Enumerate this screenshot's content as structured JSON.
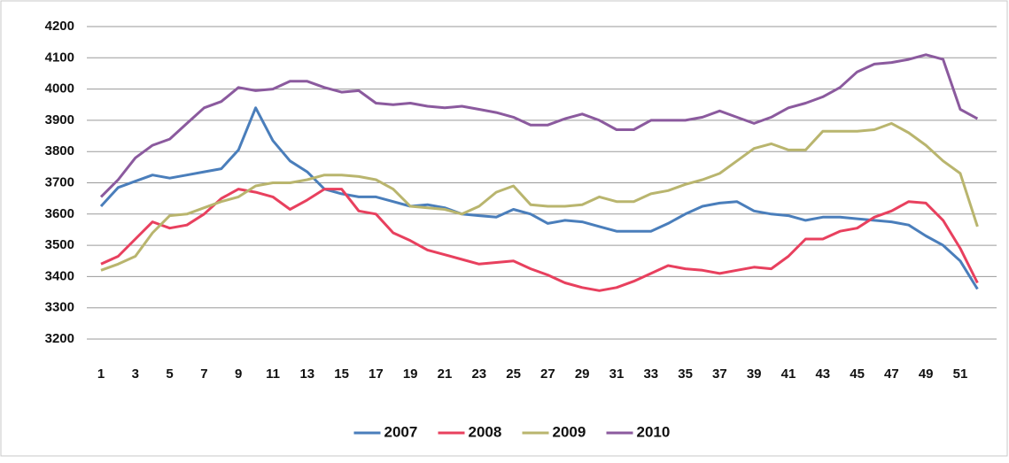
{
  "chart_data": {
    "type": "line",
    "categories": [
      1,
      null,
      3,
      null,
      5,
      null,
      7,
      null,
      9,
      null,
      11,
      null,
      13,
      null,
      15,
      null,
      17,
      null,
      19,
      null,
      21,
      null,
      23,
      null,
      25,
      null,
      27,
      null,
      29,
      null,
      31,
      null,
      33,
      null,
      35,
      null,
      37,
      null,
      39,
      null,
      41,
      null,
      43,
      null,
      45,
      null,
      47,
      null,
      49,
      null,
      51,
      null
    ],
    "series": [
      {
        "name": "2007",
        "color": "#4a7ebb",
        "values": [
          3625,
          3685,
          3705,
          3725,
          3715,
          3725,
          3735,
          3745,
          3805,
          3940,
          3835,
          3770,
          3735,
          3680,
          3665,
          3655,
          3655,
          3640,
          3625,
          3630,
          3620,
          3600,
          3595,
          3590,
          3615,
          3600,
          3570,
          3580,
          3575,
          3560,
          3545,
          3545,
          3545,
          3570,
          3600,
          3625,
          3635,
          3640,
          3610,
          3600,
          3595,
          3580,
          3590,
          3590,
          3585,
          3580,
          3575,
          3565,
          3530,
          3500,
          3450,
          3360
        ]
      },
      {
        "name": "2008",
        "color": "#e8405e",
        "values": [
          3440,
          3465,
          3520,
          3575,
          3555,
          3565,
          3600,
          3650,
          3680,
          3670,
          3655,
          3615,
          3645,
          3680,
          3680,
          3610,
          3600,
          3540,
          3515,
          3485,
          3470,
          3455,
          3440,
          3445,
          3450,
          3425,
          3405,
          3380,
          3365,
          3355,
          3365,
          3385,
          3410,
          3435,
          3425,
          3420,
          3410,
          3420,
          3430,
          3425,
          3465,
          3520,
          3520,
          3545,
          3555,
          3590,
          3610,
          3640,
          3635,
          3580,
          3490,
          3380
        ]
      },
      {
        "name": "2009",
        "color": "#b9b56e",
        "values": [
          3420,
          3440,
          3465,
          3540,
          3595,
          3600,
          3620,
          3640,
          3655,
          3690,
          3700,
          3700,
          3710,
          3725,
          3725,
          3720,
          3710,
          3680,
          3625,
          3620,
          3615,
          3600,
          3625,
          3670,
          3690,
          3630,
          3625,
          3625,
          3630,
          3655,
          3640,
          3640,
          3665,
          3675,
          3695,
          3710,
          3730,
          3770,
          3810,
          3825,
          3805,
          3805,
          3865,
          3865,
          3865,
          3870,
          3890,
          3860,
          3820,
          3770,
          3730,
          3560
        ]
      },
      {
        "name": "2010",
        "color": "#8b5a9e",
        "values": [
          3655,
          3710,
          3780,
          3820,
          3840,
          3890,
          3940,
          3960,
          4005,
          3995,
          4000,
          4025,
          4025,
          4005,
          3990,
          3995,
          3955,
          3950,
          3955,
          3945,
          3940,
          3945,
          3935,
          3925,
          3910,
          3885,
          3885,
          3905,
          3920,
          3900,
          3870,
          3870,
          3900,
          3900,
          3900,
          3910,
          3930,
          3910,
          3890,
          3910,
          3940,
          3955,
          3975,
          4005,
          4055,
          4080,
          4085,
          4095,
          4110,
          4095,
          3935,
          3905
        ]
      }
    ],
    "ylim": [
      3200,
      4200
    ],
    "yticks": [
      3200,
      3300,
      3400,
      3500,
      3600,
      3700,
      3800,
      3900,
      4000,
      4100,
      4200
    ],
    "grid": true,
    "legend": "bottom"
  }
}
